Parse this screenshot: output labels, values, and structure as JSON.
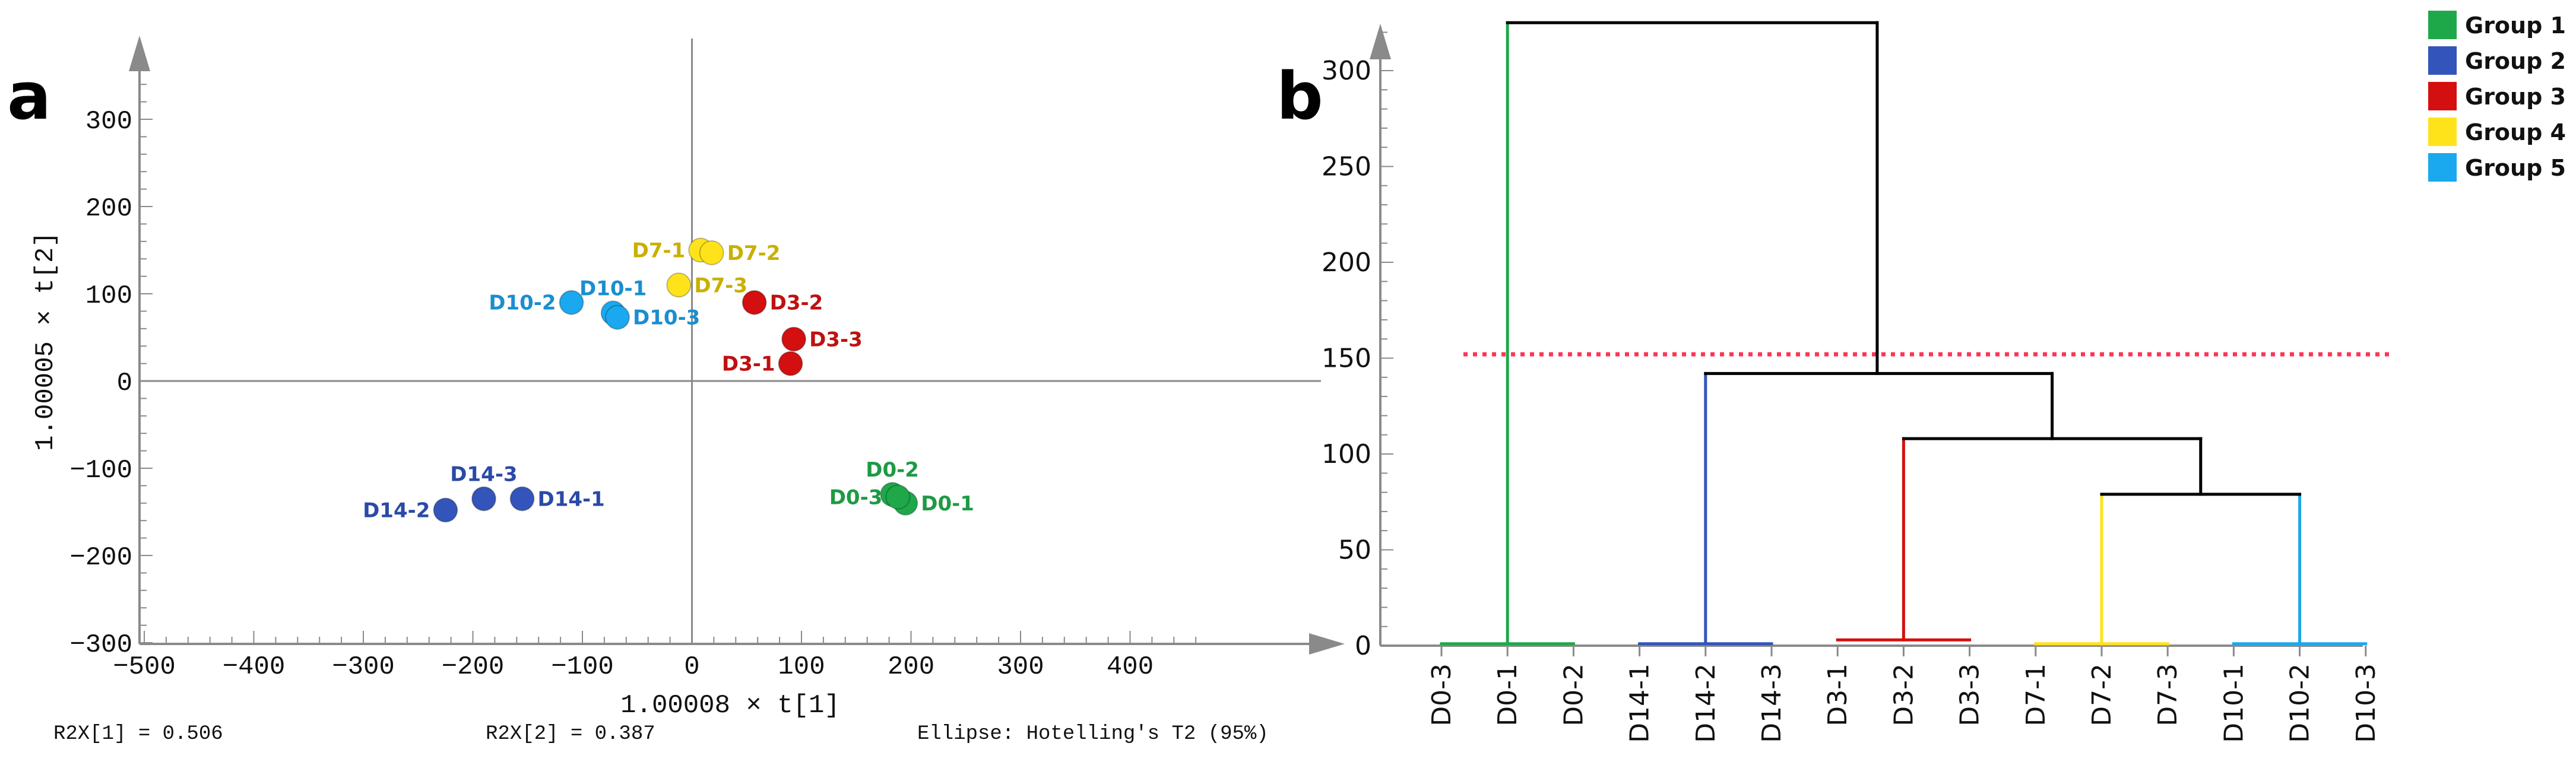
{
  "panel_a": {
    "letter": "a",
    "footer": {
      "r2x1": "R2X[1] = 0.506",
      "r2x2": "R2X[2] = 0.387",
      "ellipse": "Ellipse: Hotelling's T2 (95%)"
    }
  },
  "panel_b": {
    "letter": "b"
  },
  "chart_data": [
    {
      "type": "scatter",
      "title": "",
      "xlabel": "1.00008 × t[1]",
      "ylabel": "1.00005 × t[2]",
      "xlim": [
        -500,
        480
      ],
      "ylim": [
        -300,
        350
      ],
      "xticks": [
        -500,
        -400,
        -300,
        -200,
        -100,
        0,
        100,
        200,
        300,
        400
      ],
      "yticks": [
        -300,
        -200,
        -100,
        0,
        100,
        200,
        300
      ],
      "points": [
        {
          "label": "D0-1",
          "x": 195,
          "y": -140,
          "color": "#1ea84a",
          "text_color": "#1e9a44",
          "label_pos": "right"
        },
        {
          "label": "D0-2",
          "x": 183,
          "y": -130,
          "color": "#1ea84a",
          "text_color": "#1e9a44",
          "label_pos": "top"
        },
        {
          "label": "D0-3",
          "x": 188,
          "y": -133,
          "color": "#1ea84a",
          "text_color": "#1e9a44",
          "label_pos": "left"
        },
        {
          "label": "D14-1",
          "x": -155,
          "y": -135,
          "color": "#3355bb",
          "text_color": "#2a4aa8",
          "label_pos": "right"
        },
        {
          "label": "D14-2",
          "x": -225,
          "y": -148,
          "color": "#3355bb",
          "text_color": "#2a4aa8",
          "label_pos": "left"
        },
        {
          "label": "D14-3",
          "x": -190,
          "y": -135,
          "color": "#3355bb",
          "text_color": "#2a4aa8",
          "label_pos": "top"
        },
        {
          "label": "D3-1",
          "x": 90,
          "y": 20,
          "color": "#d40f0f",
          "text_color": "#c01010",
          "label_pos": "left"
        },
        {
          "label": "D3-2",
          "x": 57,
          "y": 90,
          "color": "#d40f0f",
          "text_color": "#c01010",
          "label_pos": "right"
        },
        {
          "label": "D3-3",
          "x": 93,
          "y": 48,
          "color": "#d40f0f",
          "text_color": "#c01010",
          "label_pos": "right"
        },
        {
          "label": "D7-1",
          "x": 8,
          "y": 150,
          "color": "#ffe31a",
          "text_color": "#c8b000",
          "label_pos": "left"
        },
        {
          "label": "D7-2",
          "x": 18,
          "y": 147,
          "color": "#ffe31a",
          "text_color": "#c8b000",
          "label_pos": "right"
        },
        {
          "label": "D7-3",
          "x": -12,
          "y": 110,
          "color": "#ffe31a",
          "text_color": "#c8b000",
          "label_pos": "right"
        },
        {
          "label": "D10-1",
          "x": -72,
          "y": 78,
          "color": "#1aa8ee",
          "text_color": "#1a8ed0",
          "label_pos": "top"
        },
        {
          "label": "D10-2",
          "x": -110,
          "y": 90,
          "color": "#1aa8ee",
          "text_color": "#1a8ed0",
          "label_pos": "left"
        },
        {
          "label": "D10-3",
          "x": -68,
          "y": 73,
          "color": "#1aa8ee",
          "text_color": "#1a8ed0",
          "label_pos": "right"
        }
      ]
    },
    {
      "type": "dendrogram",
      "title": "",
      "ylim": [
        0,
        325
      ],
      "yticks": [
        0,
        50,
        100,
        150,
        200,
        250,
        300
      ],
      "cut_height": 152,
      "leaves": [
        "D0-3",
        "D0-1",
        "D0-2",
        "D14-1",
        "D14-2",
        "D14-3",
        "D3-1",
        "D3-2",
        "D3-3",
        "D7-1",
        "D7-2",
        "D7-3",
        "D10-1",
        "D10-2",
        "D10-3"
      ],
      "links": [
        {
          "x1": 1,
          "x2": 1,
          "y1": 1,
          "y2": 325,
          "color": "#1ea84a"
        },
        {
          "x1": 0,
          "x2": 2,
          "y1": 1,
          "y2": 1,
          "color": "#1ea84a"
        },
        {
          "x1": 4,
          "x2": 4,
          "y1": 1,
          "y2": 142,
          "color": "#3355bb"
        },
        {
          "x1": 3,
          "x2": 5,
          "y1": 1,
          "y2": 1,
          "color": "#3355bb"
        },
        {
          "x1": 7,
          "x2": 7,
          "y1": 3,
          "y2": 108,
          "color": "#d40f0f"
        },
        {
          "x1": 6,
          "x2": 8,
          "y1": 3,
          "y2": 3,
          "color": "#d40f0f"
        },
        {
          "x1": 10,
          "x2": 10,
          "y1": 1,
          "y2": 79,
          "color": "#ffe31a"
        },
        {
          "x1": 9,
          "x2": 11,
          "y1": 1,
          "y2": 1,
          "color": "#ffe31a"
        },
        {
          "x1": 13,
          "x2": 13,
          "y1": 1,
          "y2": 79,
          "color": "#1aa8ee"
        },
        {
          "x1": 12,
          "x2": 14,
          "y1": 1,
          "y2": 1,
          "color": "#1aa8ee"
        },
        {
          "x1": 10,
          "x2": 13,
          "y1": 79,
          "y2": 79,
          "color": "#000000"
        },
        {
          "x1": 11.5,
          "x2": 11.5,
          "y1": 79,
          "y2": 108,
          "color": "#000000"
        },
        {
          "x1": 7,
          "x2": 11.5,
          "y1": 108,
          "y2": 108,
          "color": "#000000"
        },
        {
          "x1": 9.25,
          "x2": 9.25,
          "y1": 108,
          "y2": 142,
          "color": "#000000"
        },
        {
          "x1": 4,
          "x2": 9.25,
          "y1": 142,
          "y2": 142,
          "color": "#000000"
        },
        {
          "x1": 6.6,
          "x2": 6.6,
          "y1": 142,
          "y2": 325,
          "color": "#000000"
        },
        {
          "x1": 1,
          "x2": 6.6,
          "y1": 325,
          "y2": 325,
          "color": "#000000"
        }
      ],
      "legend": {
        "position": "top-right",
        "entries": [
          {
            "name": "Group 1",
            "color": "#1ea84a"
          },
          {
            "name": "Group 2",
            "color": "#3355bb"
          },
          {
            "name": "Group 3",
            "color": "#d40f0f"
          },
          {
            "name": "Group 4",
            "color": "#ffe31a"
          },
          {
            "name": "Group 5",
            "color": "#1aa8ee"
          }
        ]
      }
    }
  ]
}
